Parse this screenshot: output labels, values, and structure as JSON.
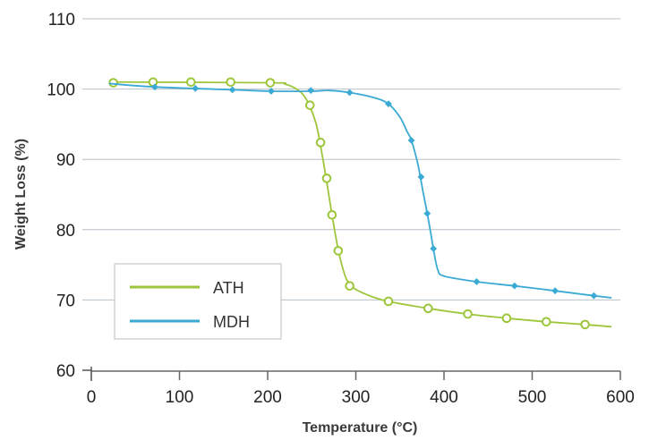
{
  "chart_data": {
    "type": "line",
    "xlabel": "Temperature (°C)",
    "ylabel": "Weight Loss (%)",
    "xlim": [
      0,
      600
    ],
    "ylim": [
      60,
      110
    ],
    "x_ticks": [
      "0",
      "100",
      "200",
      "300",
      "400",
      "500",
      "600"
    ],
    "y_ticks": [
      "60",
      "70",
      "80",
      "90",
      "100",
      "110"
    ],
    "grid": "horizontal",
    "legend_position": "bottom-left",
    "series": [
      {
        "name": "ATH",
        "color": "#9dc63b",
        "marker": "circle",
        "markers": [
          [
            25,
            100.9
          ],
          [
            70,
            101.0
          ],
          [
            113,
            101.0
          ],
          [
            158,
            101.0
          ],
          [
            203,
            100.9
          ],
          [
            248,
            97.7
          ],
          [
            260,
            92.4
          ],
          [
            267,
            87.3
          ],
          [
            273,
            82.1
          ],
          [
            280,
            77.0
          ],
          [
            293,
            72.0
          ],
          [
            337,
            69.8
          ],
          [
            382,
            68.8
          ],
          [
            427,
            68.0
          ],
          [
            471,
            67.4
          ],
          [
            516,
            66.9
          ],
          [
            560,
            66.5
          ]
        ],
        "curve": [
          [
            20,
            101.0
          ],
          [
            200,
            100.9
          ],
          [
            220,
            100.7
          ],
          [
            235,
            99.8
          ],
          [
            245,
            98.3
          ],
          [
            255,
            95.0
          ],
          [
            262,
            90.5
          ],
          [
            268,
            86.0
          ],
          [
            273,
            82.1
          ],
          [
            278,
            78.5
          ],
          [
            283,
            75.5
          ],
          [
            290,
            72.8
          ],
          [
            300,
            71.5
          ],
          [
            320,
            70.4
          ],
          [
            337,
            69.8
          ],
          [
            382,
            68.8
          ],
          [
            427,
            68.0
          ],
          [
            471,
            67.4
          ],
          [
            516,
            66.9
          ],
          [
            560,
            66.5
          ],
          [
            590,
            66.2
          ]
        ]
      },
      {
        "name": "MDH",
        "color": "#3aaad4",
        "marker": "diamond",
        "markers": [
          [
            72,
            100.3
          ],
          [
            118,
            100.1
          ],
          [
            160,
            99.9
          ],
          [
            204,
            99.7
          ],
          [
            249,
            99.8
          ],
          [
            293,
            99.5
          ],
          [
            337,
            97.9
          ],
          [
            363,
            92.7
          ],
          [
            374,
            87.5
          ],
          [
            381,
            82.3
          ],
          [
            388,
            77.3
          ],
          [
            437,
            72.6
          ],
          [
            480,
            72.0
          ],
          [
            526,
            71.3
          ],
          [
            570,
            70.6
          ]
        ],
        "curve": [
          [
            20,
            100.8
          ],
          [
            72,
            100.3
          ],
          [
            160,
            99.9
          ],
          [
            204,
            99.7
          ],
          [
            250,
            99.7
          ],
          [
            270,
            99.8
          ],
          [
            293,
            99.5
          ],
          [
            320,
            98.8
          ],
          [
            337,
            97.9
          ],
          [
            350,
            96.0
          ],
          [
            358,
            94.0
          ],
          [
            363,
            92.7
          ],
          [
            370,
            89.5
          ],
          [
            376,
            85.5
          ],
          [
            381,
            82.3
          ],
          [
            385,
            79.5
          ],
          [
            389,
            76.5
          ],
          [
            393,
            74.3
          ],
          [
            400,
            73.4
          ],
          [
            437,
            72.6
          ],
          [
            480,
            72.0
          ],
          [
            526,
            71.3
          ],
          [
            570,
            70.6
          ],
          [
            590,
            70.3
          ]
        ]
      }
    ],
    "legend": [
      {
        "name": "ATH",
        "color": "#9dc63b"
      },
      {
        "name": "MDH",
        "color": "#3aaad4"
      }
    ]
  }
}
